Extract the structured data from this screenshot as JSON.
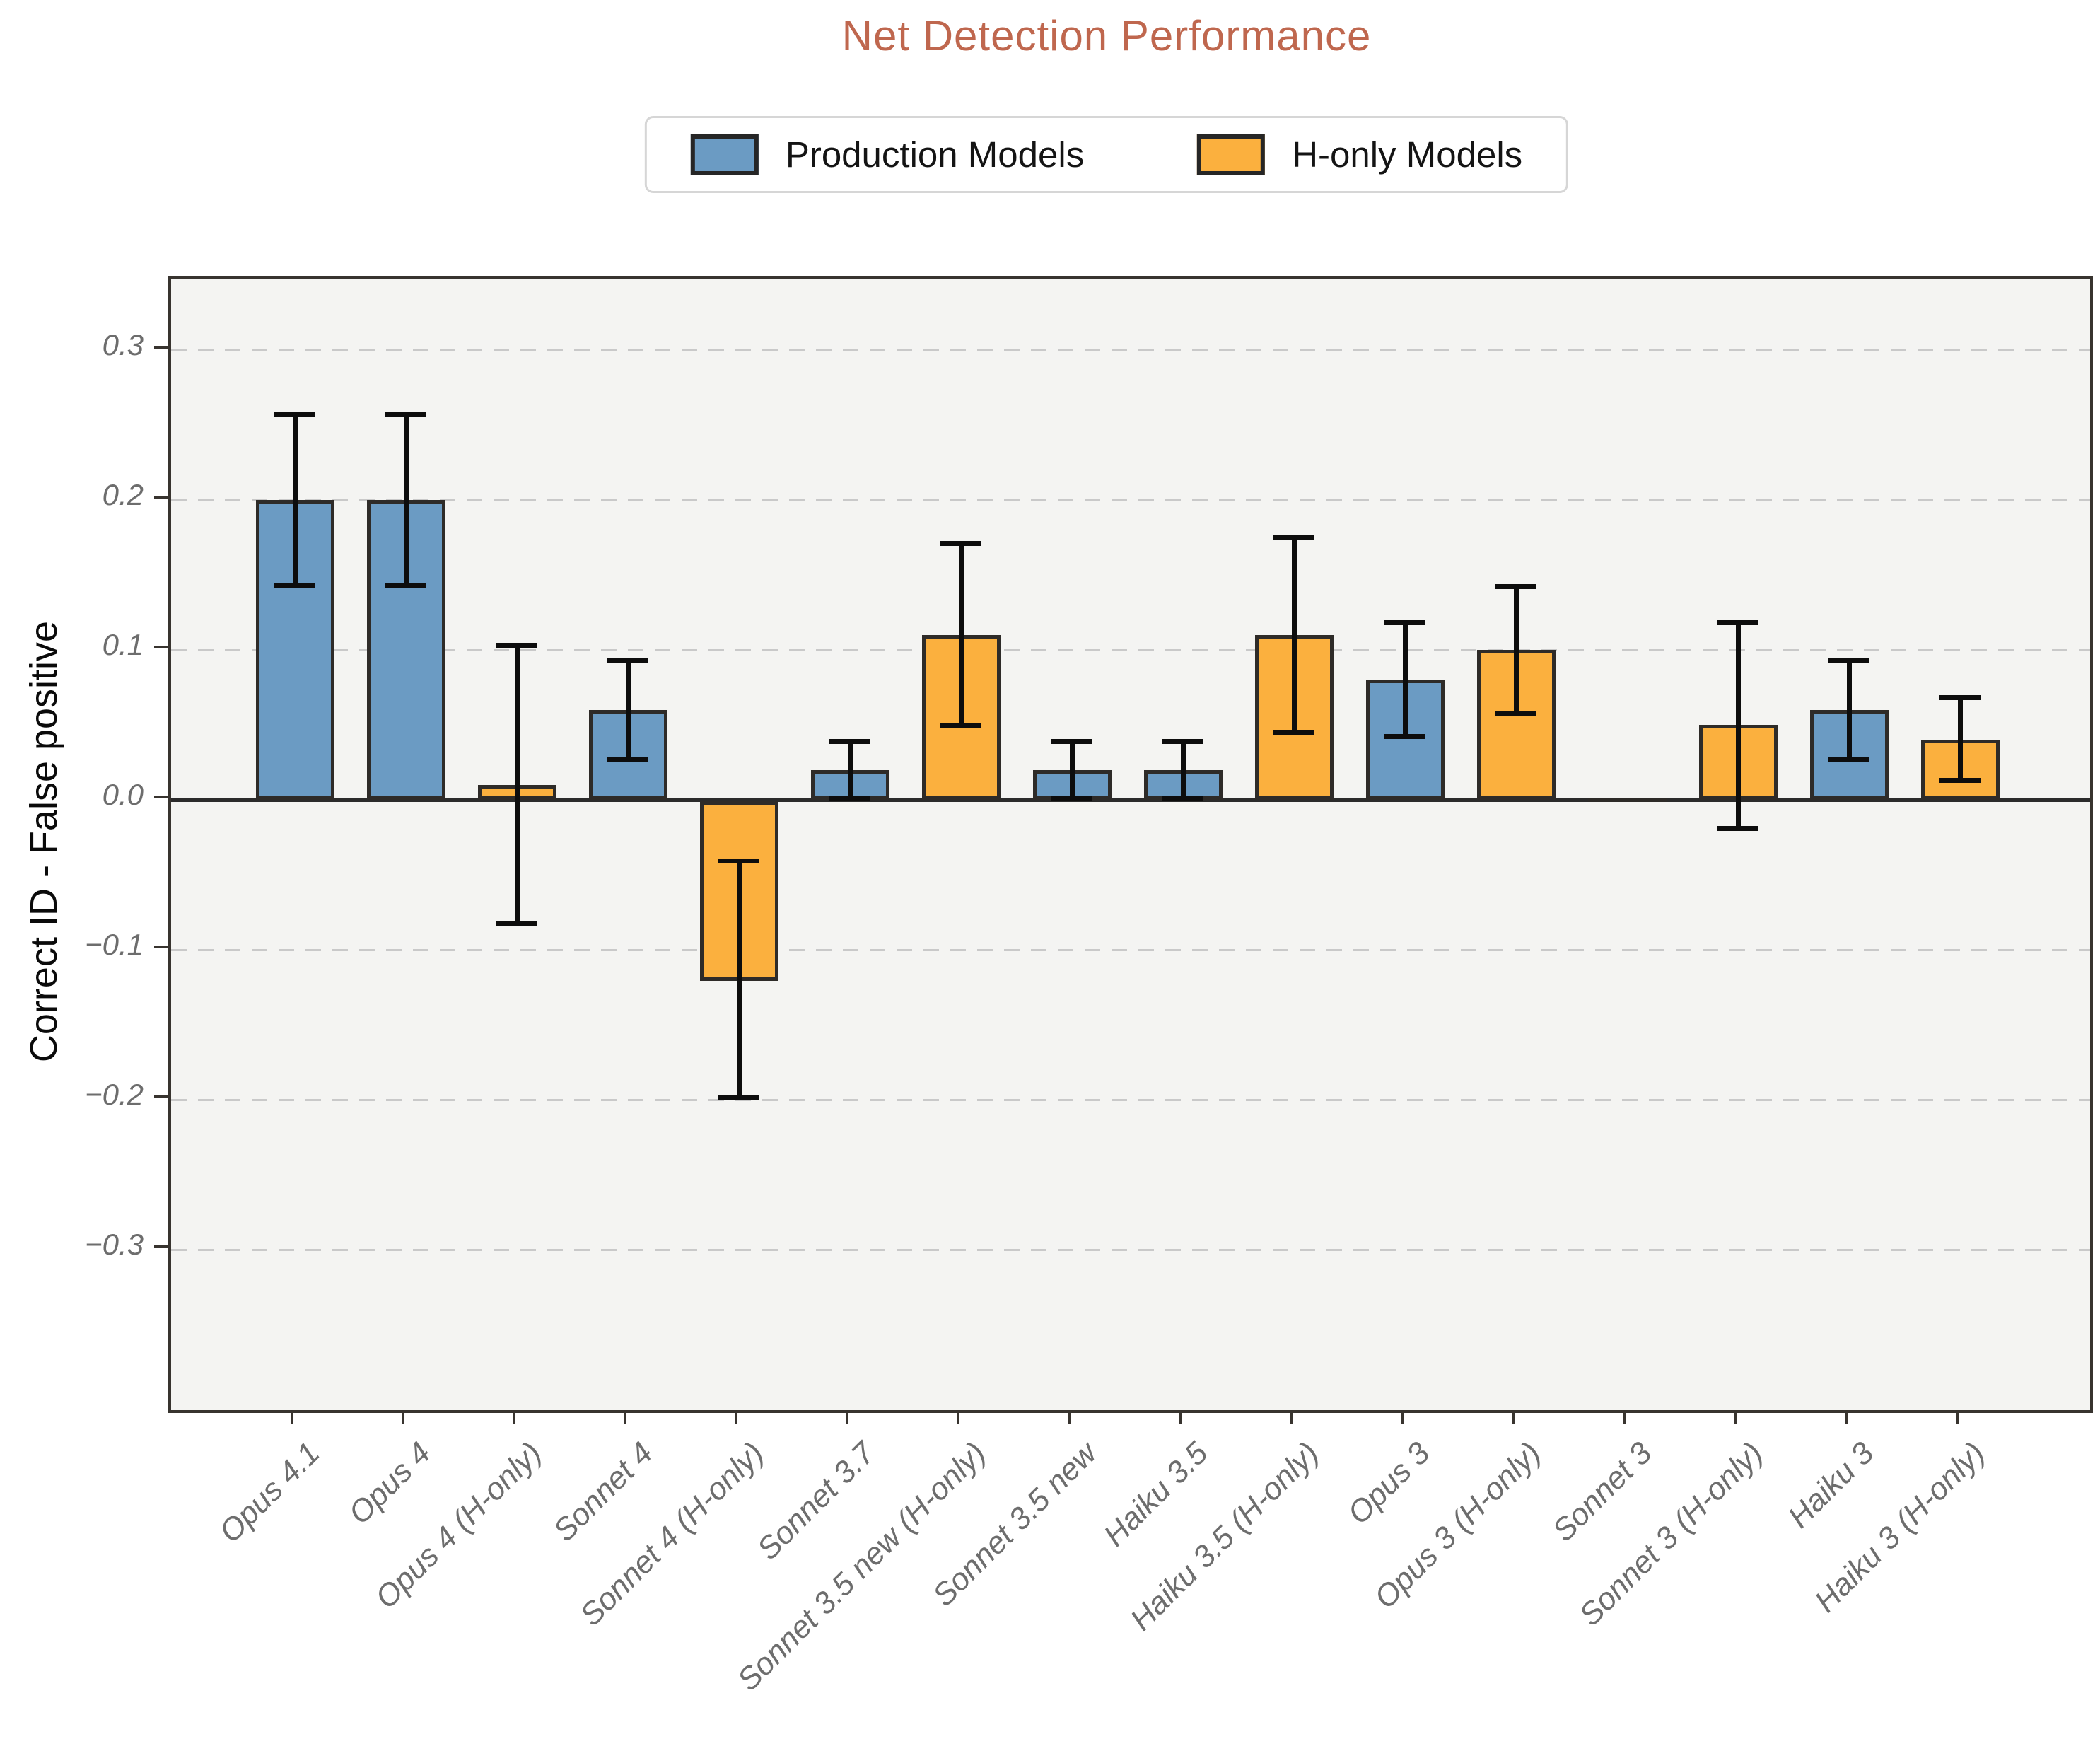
{
  "title": "Net Detection Performance",
  "colors": {
    "title": "#bf674e",
    "production": "#6b9bc3",
    "h_only": "#fbb03e",
    "plot_background": "#f4f4f2",
    "figure_background": "#ffffff",
    "grid": "#c9c9c9",
    "bar_edge": "#2e2b28",
    "error_bar": "#0d0d0d",
    "tick_text": "#6d6d6d"
  },
  "legend": {
    "items": [
      {
        "label": "Production Models",
        "group": "production"
      },
      {
        "label": "H-only Models",
        "group": "h_only"
      }
    ]
  },
  "chart_data": {
    "type": "bar",
    "title": "Net Detection Performance",
    "xlabel": "",
    "ylabel": "Correct ID - False positive",
    "ylim": [
      -0.407,
      0.348
    ],
    "grid": "horizontal-dashed",
    "legend_position": "top-center",
    "y_ticks": [
      {
        "value": 0.3,
        "label": "0.3"
      },
      {
        "value": 0.2,
        "label": "0.2"
      },
      {
        "value": 0.1,
        "label": "0.1"
      },
      {
        "value": 0.0,
        "label": "0.0"
      },
      {
        "value": -0.1,
        "label": "−0.1"
      },
      {
        "value": -0.2,
        "label": "−0.2"
      },
      {
        "value": -0.3,
        "label": "−0.3"
      }
    ],
    "bars": [
      {
        "label": "Opus 4.1",
        "group": "production",
        "value": 0.2,
        "err_lo": 0.143,
        "err_hi": 0.257
      },
      {
        "label": "Opus 4",
        "group": "production",
        "value": 0.2,
        "err_lo": 0.143,
        "err_hi": 0.257
      },
      {
        "label": "Opus 4 (H-only)",
        "group": "h_only",
        "value": 0.01,
        "err_lo": -0.083,
        "err_hi": 0.103
      },
      {
        "label": "Sonnet 4",
        "group": "production",
        "value": 0.06,
        "err_lo": 0.027,
        "err_hi": 0.093
      },
      {
        "label": "Sonnet 4 (H-only)",
        "group": "h_only",
        "value": -0.12,
        "err_lo": -0.199,
        "err_hi": -0.041
      },
      {
        "label": "Sonnet 3.7",
        "group": "production",
        "value": 0.02,
        "err_lo": 0.001,
        "err_hi": 0.039
      },
      {
        "label": "Sonnet 3.5 new (H-only)",
        "group": "h_only",
        "value": 0.11,
        "err_lo": 0.05,
        "err_hi": 0.171
      },
      {
        "label": "Sonnet 3.5 new",
        "group": "production",
        "value": 0.02,
        "err_lo": 0.001,
        "err_hi": 0.039
      },
      {
        "label": "Haiku 3.5",
        "group": "production",
        "value": 0.02,
        "err_lo": 0.001,
        "err_hi": 0.039
      },
      {
        "label": "Haiku 3.5 (H-only)",
        "group": "h_only",
        "value": 0.11,
        "err_lo": 0.045,
        "err_hi": 0.175
      },
      {
        "label": "Opus 3",
        "group": "production",
        "value": 0.08,
        "err_lo": 0.042,
        "err_hi": 0.118
      },
      {
        "label": "Opus 3 (H-only)",
        "group": "h_only",
        "value": 0.1,
        "err_lo": 0.058,
        "err_hi": 0.142
      },
      {
        "label": "Sonnet 3",
        "group": "production",
        "value": 0.0,
        "err_lo": null,
        "err_hi": null
      },
      {
        "label": "Sonnet 3 (H-only)",
        "group": "h_only",
        "value": 0.05,
        "err_lo": -0.019,
        "err_hi": 0.118
      },
      {
        "label": "Haiku 3",
        "group": "production",
        "value": 0.06,
        "err_lo": 0.027,
        "err_hi": 0.093
      },
      {
        "label": "Haiku 3 (H-only)",
        "group": "h_only",
        "value": 0.04,
        "err_lo": 0.013,
        "err_hi": 0.068
      }
    ]
  }
}
